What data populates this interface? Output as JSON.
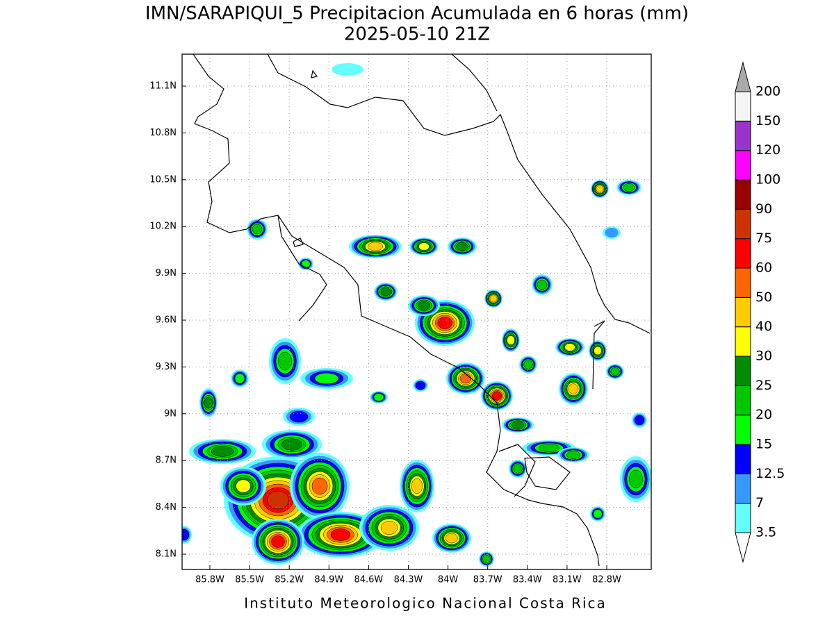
{
  "title": "IMN/SARAPIQUI_5 Precipitacion Acumulada en 6 horas (mm)",
  "subtitle": "2025-05-10 21Z",
  "footer": "Instituto Meteorologico Nacional Costa Rica",
  "lon_ticks": [
    "85.8W",
    "85.5W",
    "85.2W",
    "84.9W",
    "84.6W",
    "84.3W",
    "84W",
    "83.7W",
    "83.4W",
    "83.1W",
    "82.8W"
  ],
  "lat_ticks": [
    "11.1N",
    "10.8N",
    "10.5N",
    "10.2N",
    "9.9N",
    "9.6N",
    "9.3N",
    "9N",
    "8.7N",
    "8.4N",
    "8.1N"
  ],
  "colorbar": {
    "levels": [
      3.5,
      7,
      12.5,
      15,
      20,
      25,
      30,
      40,
      50,
      60,
      75,
      90,
      100,
      120,
      150,
      200
    ],
    "colors": [
      "#ffffff",
      "#66ffff",
      "#3399ff",
      "#0000ff",
      "#00ff00",
      "#00c800",
      "#008c00",
      "#ffff00",
      "#ffcc00",
      "#ff6600",
      "#ff0000",
      "#cc3300",
      "#990000",
      "#ff00ff",
      "#9933cc",
      "#f4f4f4",
      "#aaaaaa"
    ]
  }
}
